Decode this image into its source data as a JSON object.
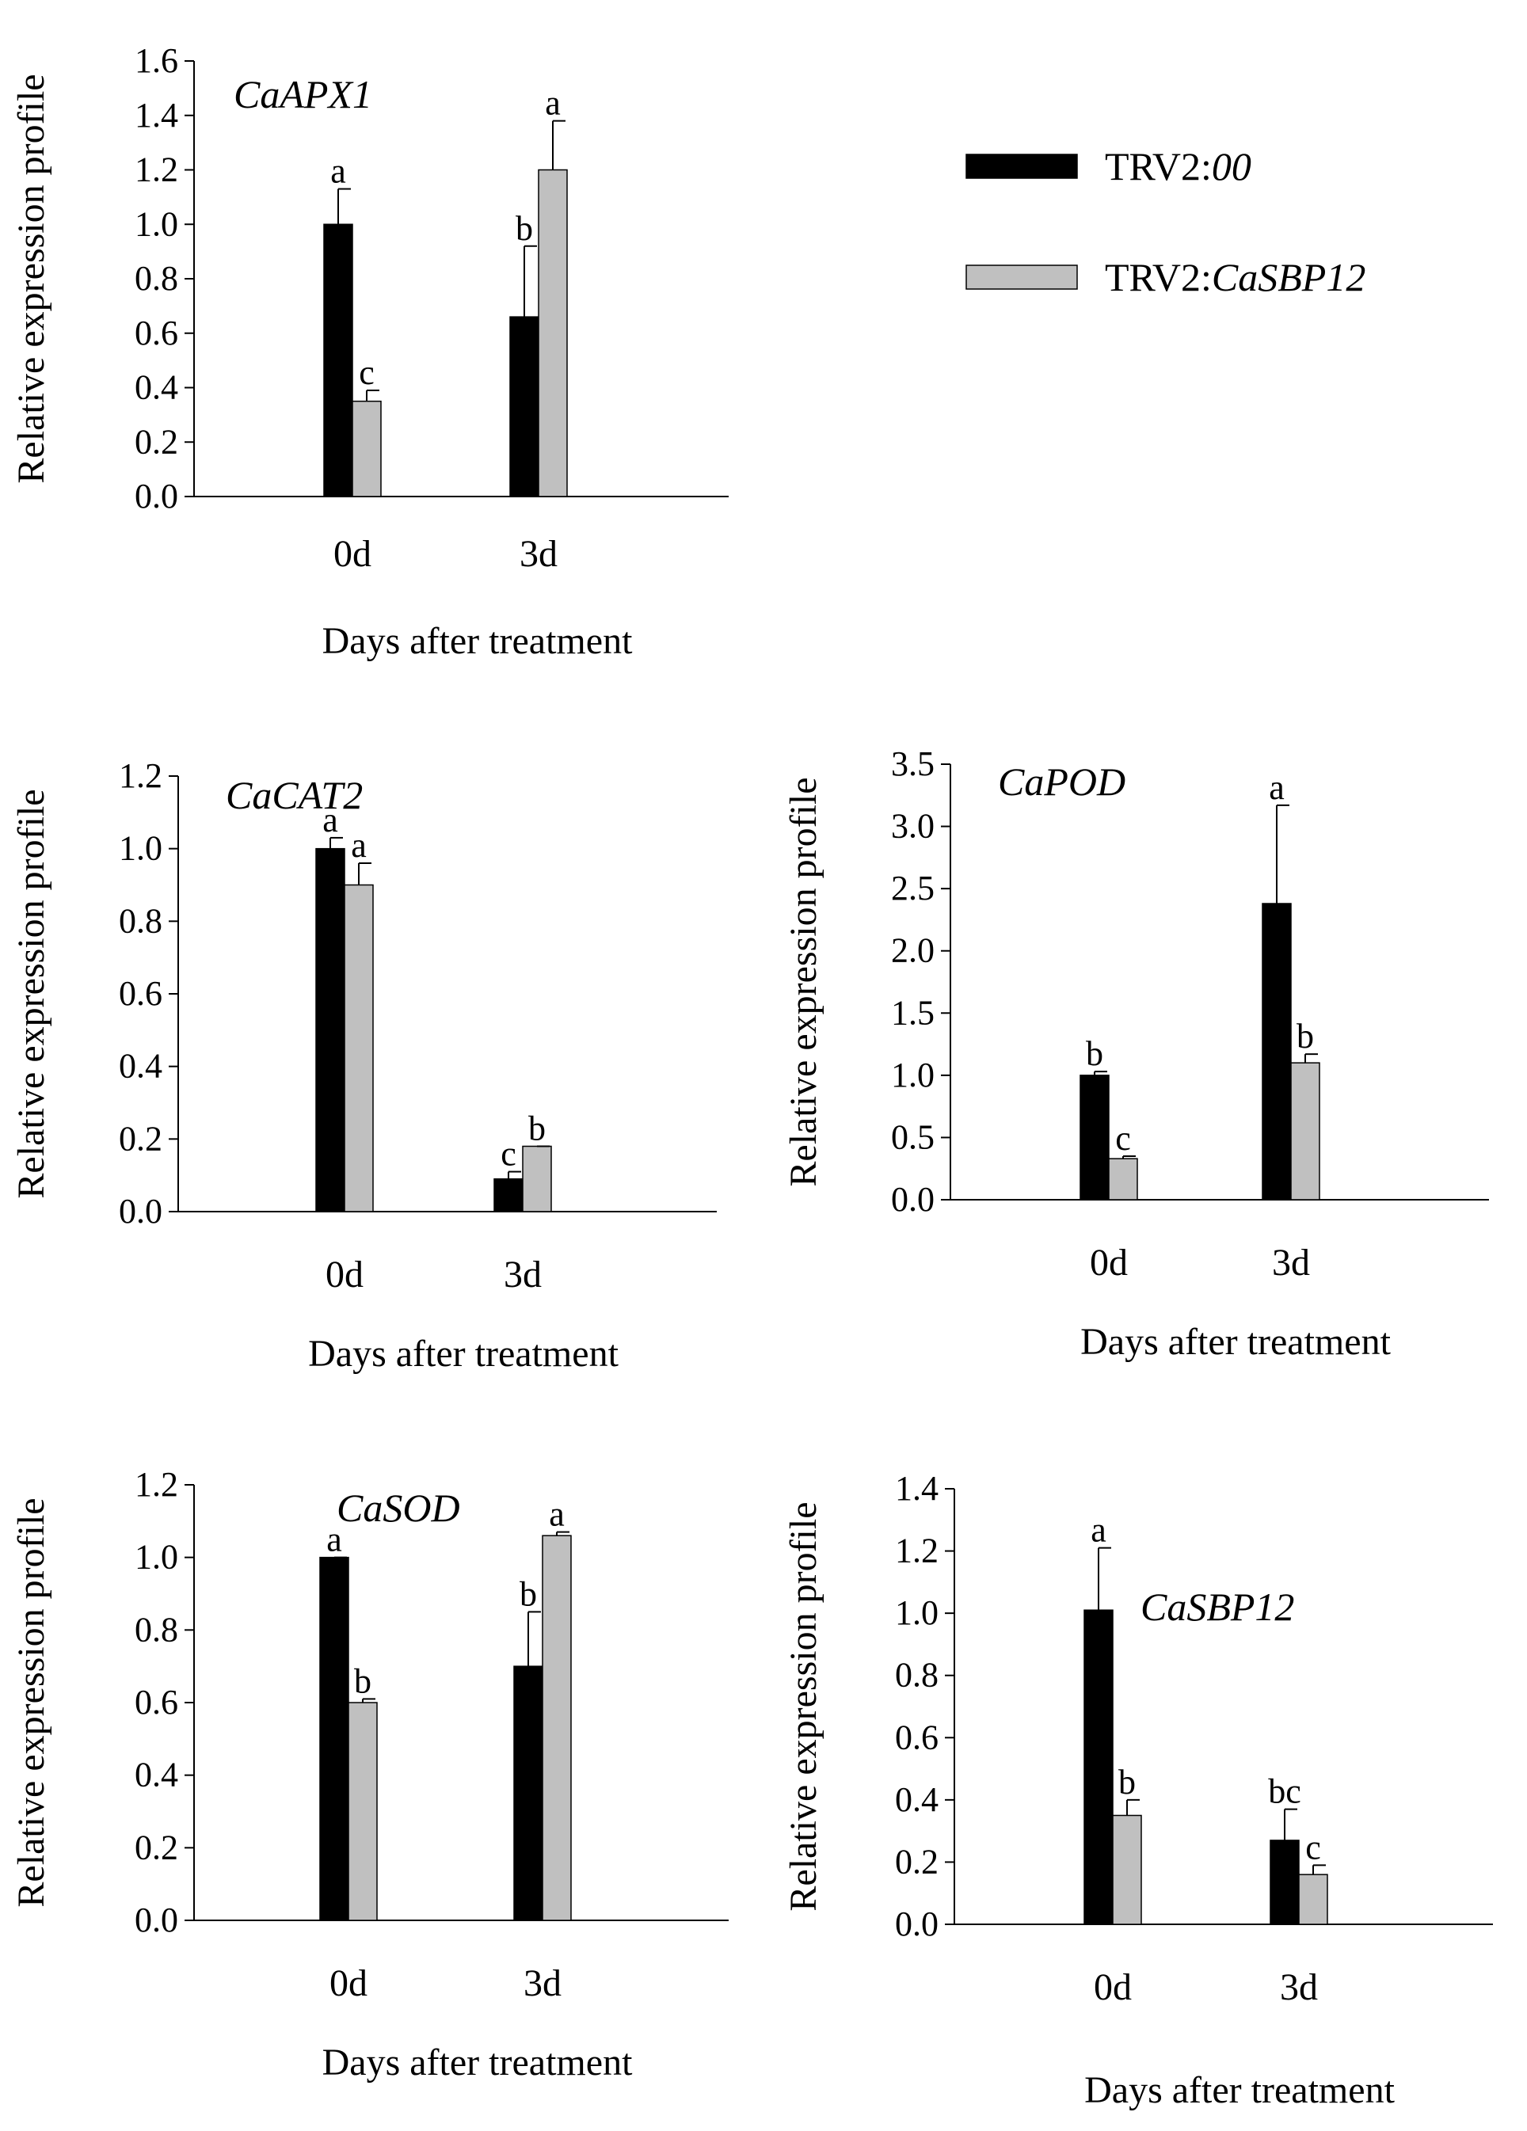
{
  "legend": {
    "items": [
      {
        "name": "TRV2:",
        "italic_part": "00",
        "color": "#000000"
      },
      {
        "name": "TRV2:",
        "italic_part": "CaSBP12",
        "color": "#c0c0c0"
      }
    ]
  },
  "chart_data": [
    {
      "type": "bar",
      "title": "CaAPX1",
      "xlabel": "Days after treatment",
      "ylabel": "Relative expression profile",
      "categories": [
        "0d",
        "3d"
      ],
      "ylim": [
        0,
        1.6
      ],
      "yticks": [
        "0.0",
        "0.2",
        "0.4",
        "0.6",
        "0.8",
        "1.0",
        "1.2",
        "1.4",
        "1.6"
      ],
      "series": [
        {
          "name": "TRV2:00",
          "color": "#000000",
          "values": [
            1.0,
            0.66
          ],
          "errors": [
            0.13,
            0.26
          ],
          "letters": [
            "a",
            "b"
          ]
        },
        {
          "name": "TRV2:CaSBP12",
          "color": "#c0c0c0",
          "values": [
            0.35,
            1.2
          ],
          "errors": [
            0.04,
            0.18
          ],
          "letters": [
            "c",
            "a"
          ]
        }
      ]
    },
    {
      "type": "bar",
      "title": "CaCAT2",
      "xlabel": "Days after treatment",
      "ylabel": "Relative expression profile",
      "categories": [
        "0d",
        "3d"
      ],
      "ylim": [
        0,
        1.2
      ],
      "yticks": [
        "0.0",
        "0.2",
        "0.4",
        "0.6",
        "0.8",
        "1.0",
        "1.2"
      ],
      "series": [
        {
          "name": "TRV2:00",
          "color": "#000000",
          "values": [
            1.0,
            0.09
          ],
          "errors": [
            0.03,
            0.02
          ],
          "letters": [
            "a",
            "c"
          ]
        },
        {
          "name": "TRV2:CaSBP12",
          "color": "#c0c0c0",
          "values": [
            0.9,
            0.18
          ],
          "errors": [
            0.06,
            0.0
          ],
          "letters": [
            "a",
            "b"
          ]
        }
      ]
    },
    {
      "type": "bar",
      "title": "CaPOD",
      "xlabel": "Days after treatment",
      "ylabel": "Relative expression profile",
      "categories": [
        "0d",
        "3d"
      ],
      "ylim": [
        0,
        3.5
      ],
      "yticks": [
        "0.0",
        "0.5",
        "1.0",
        "1.5",
        "2.0",
        "2.5",
        "3.0",
        "3.5"
      ],
      "series": [
        {
          "name": "TRV2:00",
          "color": "#000000",
          "values": [
            1.0,
            2.38
          ],
          "errors": [
            0.03,
            0.79
          ],
          "letters": [
            "b",
            "a"
          ]
        },
        {
          "name": "TRV2:CaSBP12",
          "color": "#c0c0c0",
          "values": [
            0.33,
            1.1
          ],
          "errors": [
            0.02,
            0.07
          ],
          "letters": [
            "c",
            "b"
          ]
        }
      ]
    },
    {
      "type": "bar",
      "title": "CaSOD",
      "xlabel": "Days after treatment",
      "ylabel": "Relative expression profile",
      "categories": [
        "0d",
        "3d"
      ],
      "ylim": [
        0,
        1.2
      ],
      "yticks": [
        "0.0",
        "0.2",
        "0.4",
        "0.6",
        "0.8",
        "1.0",
        "1.2"
      ],
      "series": [
        {
          "name": "TRV2:00",
          "color": "#000000",
          "values": [
            1.0,
            0.7
          ],
          "errors": [
            0.0,
            0.15
          ],
          "letters": [
            "a",
            "b"
          ]
        },
        {
          "name": "TRV2:CaSBP12",
          "color": "#c0c0c0",
          "values": [
            0.6,
            1.06
          ],
          "errors": [
            0.01,
            0.01
          ],
          "letters": [
            "b",
            "a"
          ]
        }
      ]
    },
    {
      "type": "bar",
      "title": "CaSBP12",
      "xlabel": "Days after treatment",
      "ylabel": "Relative expression profile",
      "categories": [
        "0d",
        "3d"
      ],
      "ylim": [
        0,
        1.4
      ],
      "yticks": [
        "0.0",
        "0.2",
        "0.4",
        "0.6",
        "0.8",
        "1.0",
        "1.2",
        "1.4"
      ],
      "series": [
        {
          "name": "TRV2:00",
          "color": "#000000",
          "values": [
            1.01,
            0.27
          ],
          "errors": [
            0.2,
            0.1
          ],
          "letters": [
            "a",
            "bc"
          ]
        },
        {
          "name": "TRV2:CaSBP12",
          "color": "#c0c0c0",
          "values": [
            0.35,
            0.16
          ],
          "errors": [
            0.05,
            0.03
          ],
          "letters": [
            "b",
            "c"
          ]
        }
      ]
    }
  ]
}
